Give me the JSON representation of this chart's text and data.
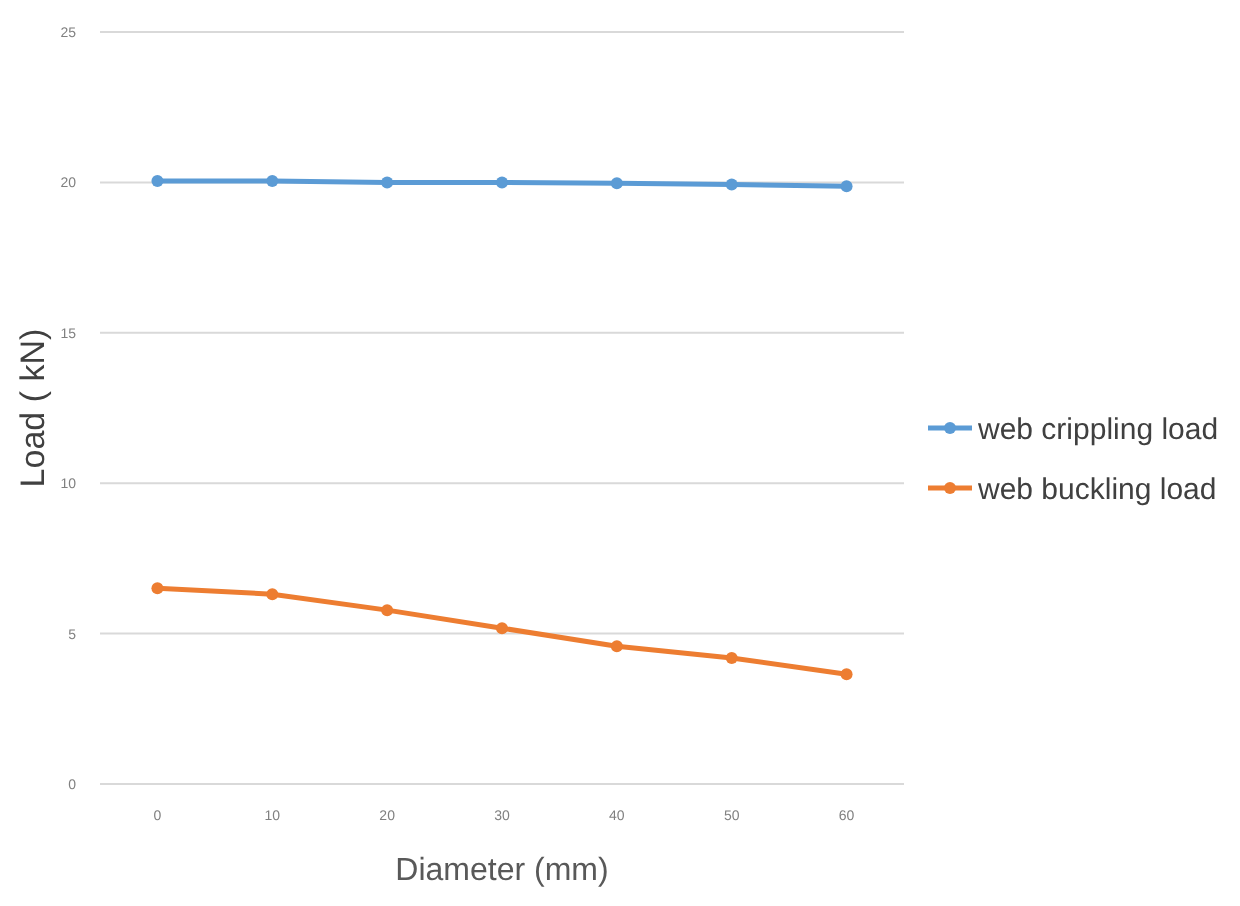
{
  "chart_data": {
    "type": "line",
    "xlabel": "Diameter (mm)",
    "ylabel": "Load ( kN)",
    "categories": [
      "0",
      "10",
      "20",
      "30",
      "40",
      "50",
      "60"
    ],
    "series": [
      {
        "name": "web crippling load",
        "color": "#5b9bd5",
        "values": [
          20.05,
          20.05,
          20.0,
          20.0,
          19.97,
          19.93,
          19.87
        ]
      },
      {
        "name": "web buckling load",
        "color": "#ed7d31",
        "values": [
          6.51,
          6.31,
          5.78,
          5.18,
          4.58,
          4.19,
          3.65
        ]
      }
    ],
    "ylim": [
      0,
      25
    ],
    "yticks": [
      0,
      5,
      10,
      15,
      20,
      25
    ],
    "grid": "y",
    "legend": "right",
    "marker": "circle",
    "line_style": "solid"
  }
}
